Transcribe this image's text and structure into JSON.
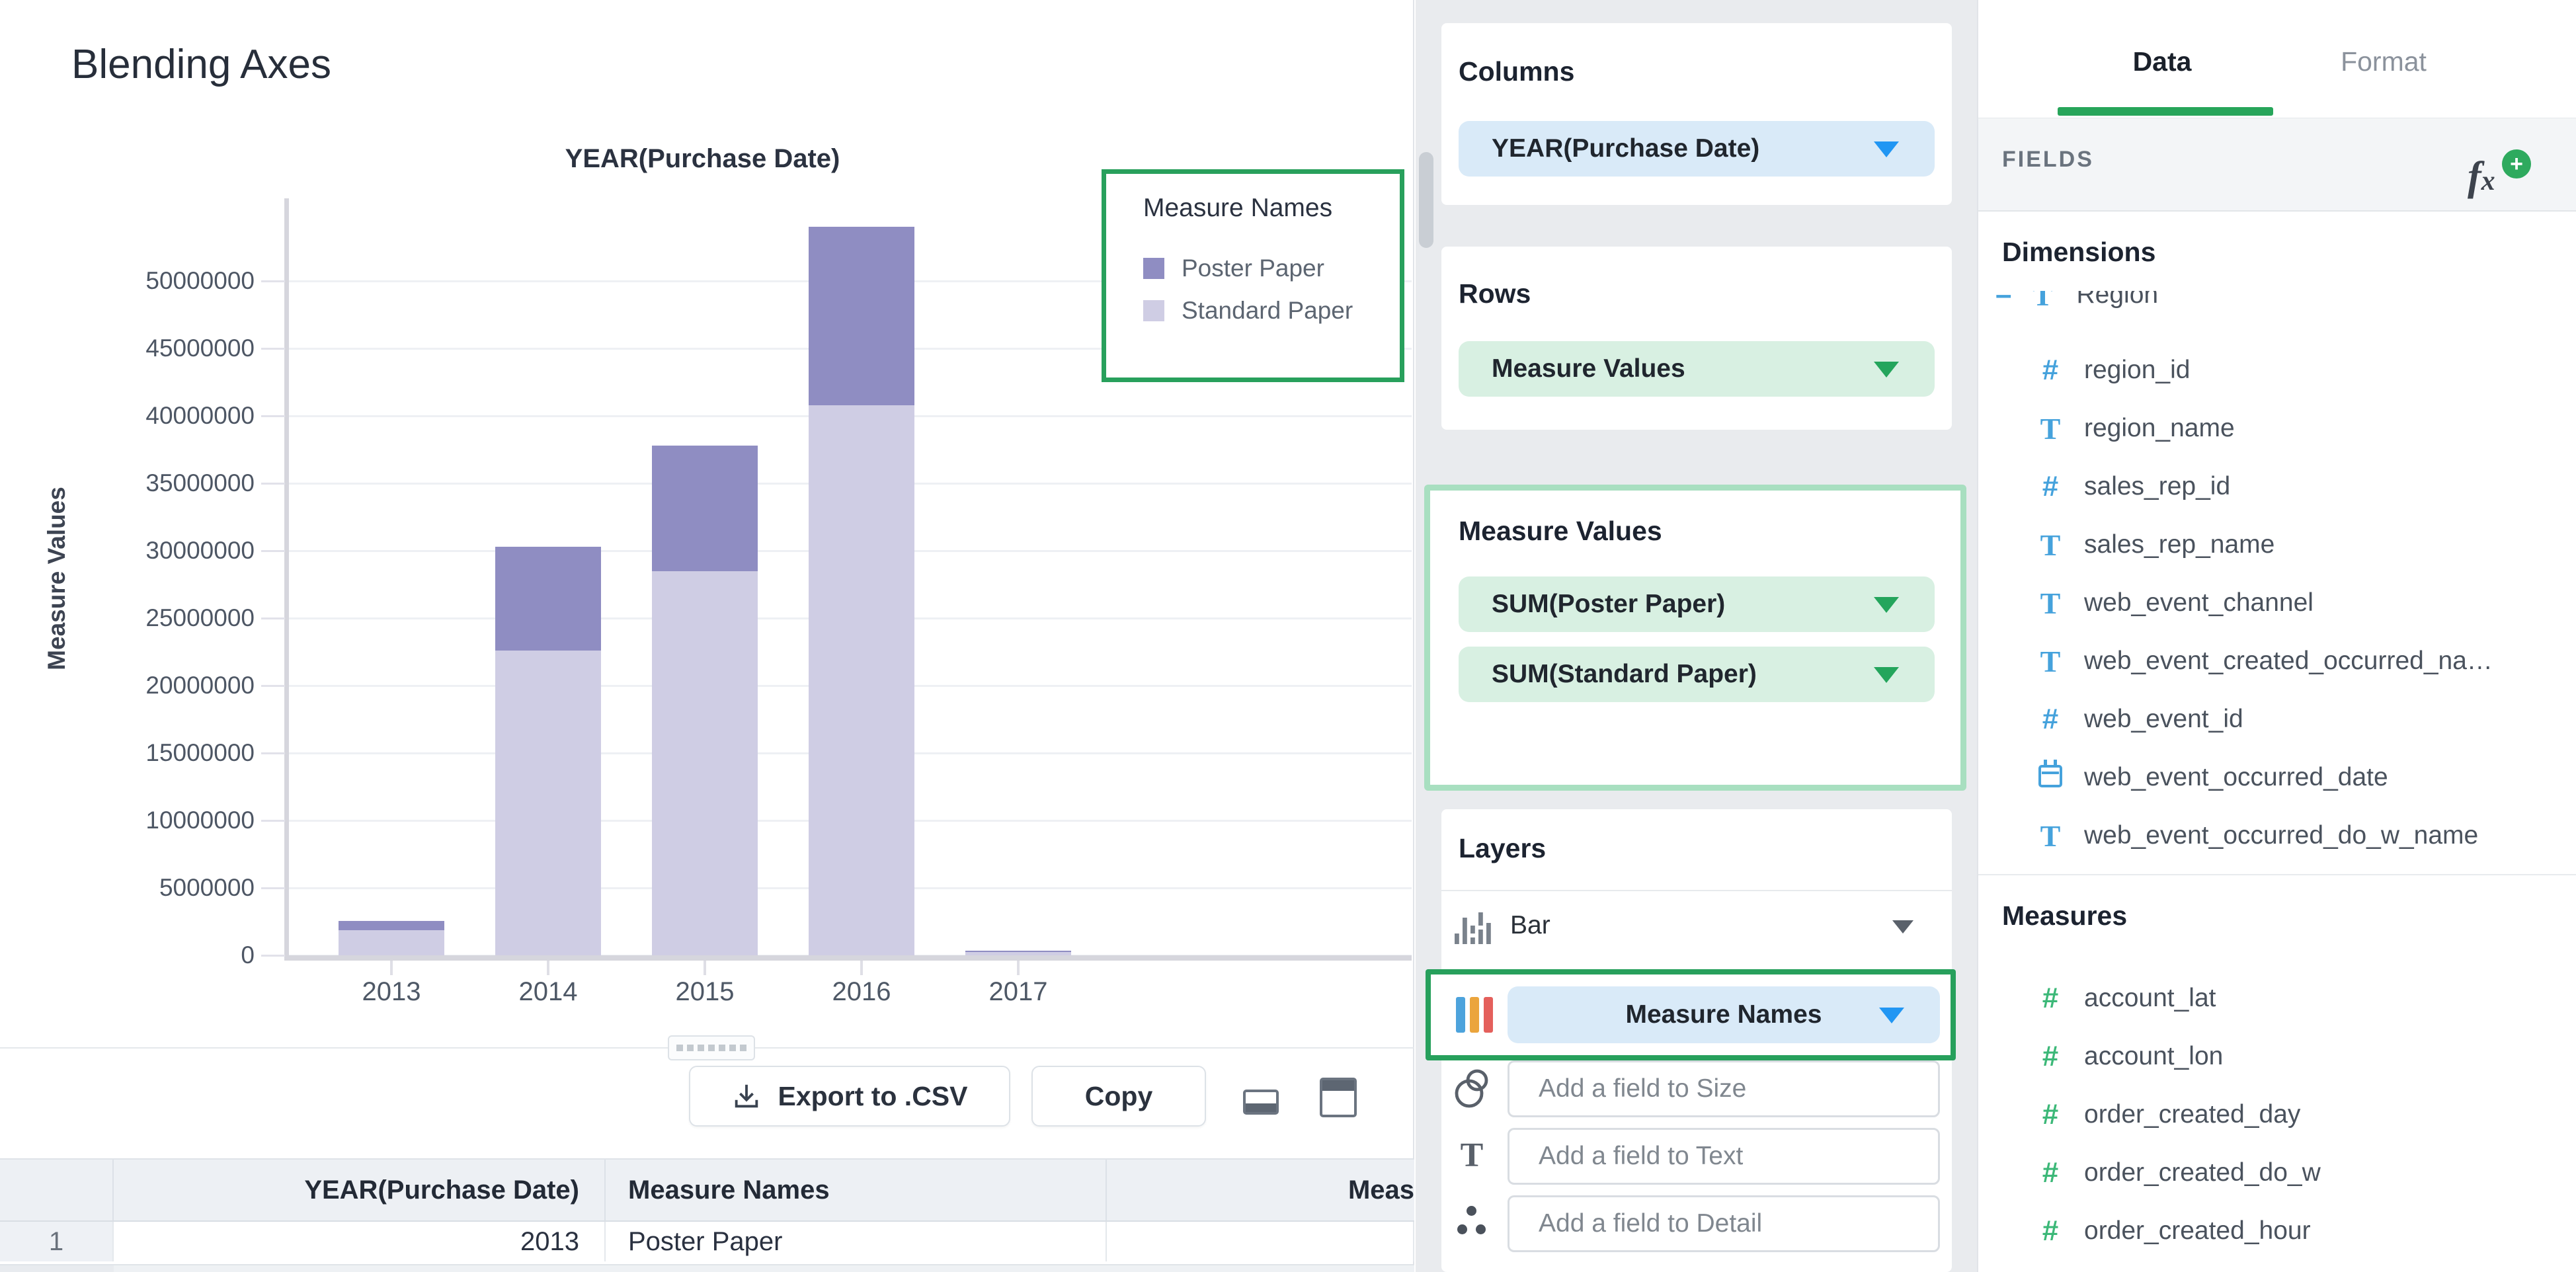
{
  "page": {
    "title": "Blending Axes"
  },
  "chart_data": {
    "type": "bar",
    "stacked": true,
    "title": "YEAR(Purchase Date)",
    "xlabel": "",
    "ylabel": "Measure Values",
    "categories": [
      "2013",
      "2014",
      "2015",
      "2016",
      "2017"
    ],
    "series": [
      {
        "name": "Poster Paper",
        "color": "#8f8dc2",
        "values": [
          700000,
          7700000,
          9300000,
          13200000,
          60000
        ]
      },
      {
        "name": "Standard Paper",
        "color": "#cfcde4",
        "values": [
          1850000,
          22600000,
          28500000,
          40800000,
          260000
        ]
      }
    ],
    "ylim": [
      0,
      50000000
    ],
    "ytick_step": 5000000,
    "grid": true,
    "legend_title": "Measure Names",
    "legend_position": "top-right"
  },
  "toolbar": {
    "export_label": "Export to .CSV",
    "copy_label": "Copy"
  },
  "table": {
    "headers": [
      "",
      "YEAR(Purchase Date)",
      "Measure Names",
      "Meas"
    ],
    "rows": [
      [
        "1",
        "2013",
        "Poster Paper",
        ""
      ]
    ]
  },
  "shelves": {
    "columns": {
      "label": "Columns",
      "pill": "YEAR(Purchase Date)"
    },
    "rows": {
      "label": "Rows",
      "pill": "Measure Values"
    },
    "measure_values": {
      "label": "Measure Values",
      "pills": [
        "SUM(Poster Paper)",
        "SUM(Standard Paper)"
      ]
    },
    "layers": {
      "label": "Layers",
      "chart_type": "Bar",
      "color_pill": "Measure Names",
      "size_placeholder": "Add a field to Size",
      "text_placeholder": "Add a field to Text",
      "detail_placeholder": "Add a field to Detail"
    }
  },
  "sidebar": {
    "tabs": [
      {
        "label": "Data"
      },
      {
        "label": "Format"
      }
    ],
    "fields_header": "FIELDS",
    "dimensions": {
      "heading": "Dimensions",
      "items": [
        {
          "name": "Region",
          "type": "text",
          "clipped": true
        },
        {
          "name": "region_id",
          "type": "number"
        },
        {
          "name": "region_name",
          "type": "text"
        },
        {
          "name": "sales_rep_id",
          "type": "number"
        },
        {
          "name": "sales_rep_name",
          "type": "text"
        },
        {
          "name": "web_event_channel",
          "type": "text"
        },
        {
          "name": "web_event_created_occurred_na…",
          "type": "text"
        },
        {
          "name": "web_event_id",
          "type": "number"
        },
        {
          "name": "web_event_occurred_date",
          "type": "date"
        },
        {
          "name": "web_event_occurred_do_w_name",
          "type": "text"
        }
      ]
    },
    "measures": {
      "heading": "Measures",
      "items": [
        {
          "name": "account_lat",
          "type": "number"
        },
        {
          "name": "account_lon",
          "type": "number"
        },
        {
          "name": "order_created_day",
          "type": "number"
        },
        {
          "name": "order_created_do_w",
          "type": "number"
        },
        {
          "name": "order_created_hour",
          "type": "number"
        }
      ]
    }
  },
  "colors": {
    "accent_green": "#27a05c",
    "light_green_border": "#a8dfc0",
    "pill_blue_bg": "#d9eaf8",
    "pill_green_bg": "#d8f0e2",
    "caret_blue": "#2196f3",
    "caret_green": "#24a55c",
    "dimension_icon": "#45a2dc",
    "measure_icon": "#3cb878",
    "bar_poster": "#8f8dc2",
    "bar_standard": "#cfcde4"
  }
}
